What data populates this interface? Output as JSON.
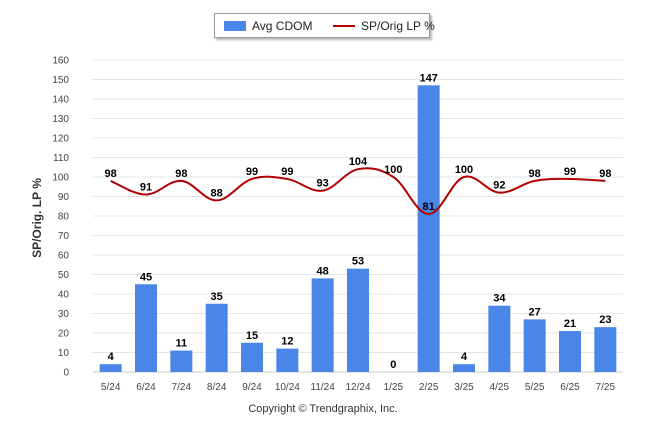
{
  "legend": {
    "bar_label": "Avg CDOM",
    "line_label": "SP/Orig LP %"
  },
  "footer": {
    "copyright": "Copyright © Trendgraphix, Inc."
  },
  "colors": {
    "bar": "#4a86e8",
    "line": "#b30000",
    "grid": "#e4e4e4"
  },
  "chart_data": {
    "type": "bar",
    "ylabel": "SP/Orig. LP %",
    "ylim": [
      0,
      160
    ],
    "yticks": [
      0,
      10,
      20,
      30,
      40,
      50,
      60,
      70,
      80,
      90,
      100,
      110,
      120,
      130,
      140,
      150,
      160
    ],
    "grid": true,
    "legend_position": "top-center",
    "categories": [
      "5/24",
      "6/24",
      "7/24",
      "8/24",
      "9/24",
      "10/24",
      "11/24",
      "12/24",
      "1/25",
      "2/25",
      "3/25",
      "4/25",
      "5/25",
      "6/25",
      "7/25"
    ],
    "series": [
      {
        "name": "Avg CDOM",
        "type": "bar",
        "values": [
          4,
          45,
          11,
          35,
          15,
          12,
          48,
          53,
          0,
          147,
          4,
          34,
          27,
          21,
          23
        ]
      },
      {
        "name": "SP/Orig LP %",
        "type": "line",
        "values": [
          98,
          91,
          98,
          88,
          99,
          99,
          93,
          104,
          100,
          81,
          100,
          92,
          98,
          99,
          98
        ]
      }
    ]
  }
}
